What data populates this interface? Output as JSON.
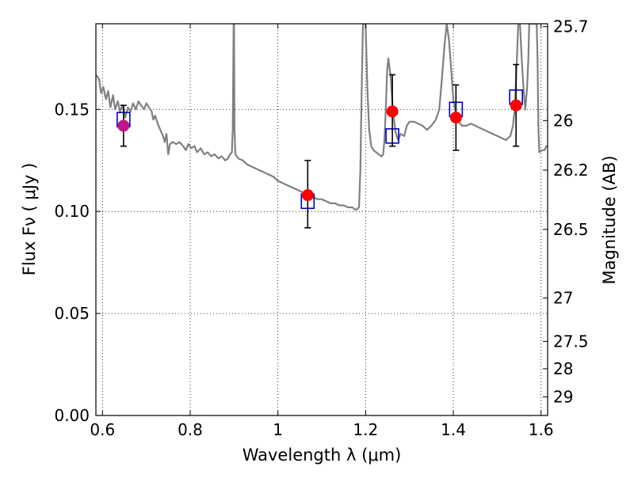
{
  "chart_data": {
    "type": "scatter",
    "title": "",
    "xlabel": "Wavelength  λ (μm)",
    "ylabel": "Flux  Fν  ( μJy )",
    "y2label": "Magnitude (AB)",
    "xlim": [
      0.585,
      1.615
    ],
    "ylim": [
      0.0,
      0.192
    ],
    "grid": true,
    "x_ticks": [
      {
        "value": 0.6,
        "label": "0.6"
      },
      {
        "value": 0.8,
        "label": "0.8"
      },
      {
        "value": 1.0,
        "label": "1"
      },
      {
        "value": 1.2,
        "label": "1.2"
      },
      {
        "value": 1.4,
        "label": "1.4"
      },
      {
        "value": 1.6,
        "label": "1.6"
      }
    ],
    "y_ticks": [
      {
        "value": 0.0,
        "label": "0.00"
      },
      {
        "value": 0.05,
        "label": "0.05"
      },
      {
        "value": 0.1,
        "label": "0.10"
      },
      {
        "value": 0.15,
        "label": "0.15"
      }
    ],
    "y2_ticks": [
      {
        "value": 25.7,
        "label": "25.7"
      },
      {
        "value": 26.0,
        "label": "26"
      },
      {
        "value": 26.2,
        "label": "26.2"
      },
      {
        "value": 26.5,
        "label": "26.5"
      },
      {
        "value": 27.0,
        "label": "27"
      },
      {
        "value": 27.5,
        "label": "27.5"
      },
      {
        "value": 28.0,
        "label": "28"
      },
      {
        "value": 29.0,
        "label": "29"
      }
    ],
    "series": [
      {
        "kind": "model_spectrum",
        "color": "#808080",
        "points": [
          [
            0.585,
            0.167
          ],
          [
            0.592,
            0.165
          ],
          [
            0.597,
            0.158
          ],
          [
            0.602,
            0.161
          ],
          [
            0.608,
            0.155
          ],
          [
            0.613,
            0.159
          ],
          [
            0.618,
            0.151
          ],
          [
            0.624,
            0.157
          ],
          [
            0.629,
            0.15
          ],
          [
            0.635,
            0.154
          ],
          [
            0.64,
            0.149
          ],
          [
            0.646,
            0.152
          ],
          [
            0.652,
            0.146
          ],
          [
            0.658,
            0.151
          ],
          [
            0.664,
            0.149
          ],
          [
            0.67,
            0.153
          ],
          [
            0.676,
            0.15
          ],
          [
            0.682,
            0.154
          ],
          [
            0.688,
            0.152
          ],
          [
            0.695,
            0.15
          ],
          [
            0.7,
            0.153
          ],
          [
            0.706,
            0.151
          ],
          [
            0.712,
            0.149
          ],
          [
            0.716,
            0.145
          ],
          [
            0.72,
            0.147
          ],
          [
            0.726,
            0.143
          ],
          [
            0.732,
            0.14
          ],
          [
            0.738,
            0.137
          ],
          [
            0.742,
            0.134
          ],
          [
            0.746,
            0.138
          ],
          [
            0.75,
            0.128
          ],
          [
            0.754,
            0.133
          ],
          [
            0.76,
            0.134
          ],
          [
            0.768,
            0.133
          ],
          [
            0.776,
            0.134
          ],
          [
            0.784,
            0.132
          ],
          [
            0.79,
            0.13
          ],
          [
            0.796,
            0.133
          ],
          [
            0.802,
            0.131
          ],
          [
            0.81,
            0.132
          ],
          [
            0.816,
            0.129
          ],
          [
            0.824,
            0.131
          ],
          [
            0.832,
            0.128
          ],
          [
            0.84,
            0.129
          ],
          [
            0.848,
            0.127
          ],
          [
            0.856,
            0.128
          ],
          [
            0.864,
            0.126
          ],
          [
            0.872,
            0.127
          ],
          [
            0.88,
            0.125
          ],
          [
            0.886,
            0.126
          ],
          [
            0.891,
            0.128
          ],
          [
            0.895,
            0.129
          ],
          [
            0.897,
            0.14
          ],
          [
            0.899,
            0.192
          ],
          [
            0.9,
            0.192
          ],
          [
            0.901,
            0.14
          ],
          [
            0.903,
            0.128
          ],
          [
            0.91,
            0.126
          ],
          [
            0.92,
            0.125
          ],
          [
            0.93,
            0.123
          ],
          [
            0.94,
            0.122
          ],
          [
            0.95,
            0.121
          ],
          [
            0.96,
            0.12
          ],
          [
            0.97,
            0.119
          ],
          [
            0.98,
            0.118
          ],
          [
            0.99,
            0.117
          ],
          [
            1.0,
            0.115
          ],
          [
            1.01,
            0.114
          ],
          [
            1.02,
            0.113
          ],
          [
            1.03,
            0.112
          ],
          [
            1.04,
            0.111
          ],
          [
            1.05,
            0.11
          ],
          [
            1.06,
            0.109
          ],
          [
            1.07,
            0.108
          ],
          [
            1.08,
            0.107
          ],
          [
            1.09,
            0.106
          ],
          [
            1.1,
            0.106
          ],
          [
            1.11,
            0.105
          ],
          [
            1.12,
            0.104
          ],
          [
            1.13,
            0.104
          ],
          [
            1.14,
            0.103
          ],
          [
            1.15,
            0.103
          ],
          [
            1.16,
            0.102
          ],
          [
            1.17,
            0.102
          ],
          [
            1.175,
            0.101
          ],
          [
            1.18,
            0.101
          ],
          [
            1.185,
            0.102
          ],
          [
            1.188,
            0.12
          ],
          [
            1.191,
            0.16
          ],
          [
            1.194,
            0.192
          ],
          [
            1.2,
            0.192
          ],
          [
            1.204,
            0.16
          ],
          [
            1.208,
            0.14
          ],
          [
            1.213,
            0.132
          ],
          [
            1.218,
            0.13
          ],
          [
            1.224,
            0.129
          ],
          [
            1.23,
            0.128
          ],
          [
            1.236,
            0.127
          ],
          [
            1.24,
            0.128
          ],
          [
            1.243,
            0.135
          ],
          [
            1.246,
            0.15
          ],
          [
            1.249,
            0.169
          ],
          [
            1.252,
            0.175
          ],
          [
            1.257,
            0.166
          ],
          [
            1.262,
            0.15
          ],
          [
            1.268,
            0.139
          ],
          [
            1.274,
            0.135
          ],
          [
            1.28,
            0.138
          ],
          [
            1.288,
            0.137
          ],
          [
            1.294,
            0.142
          ],
          [
            1.3,
            0.144
          ],
          [
            1.31,
            0.144
          ],
          [
            1.32,
            0.143
          ],
          [
            1.33,
            0.142
          ],
          [
            1.34,
            0.14
          ],
          [
            1.35,
            0.142
          ],
          [
            1.36,
            0.145
          ],
          [
            1.368,
            0.15
          ],
          [
            1.374,
            0.165
          ],
          [
            1.38,
            0.182
          ],
          [
            1.385,
            0.192
          ],
          [
            1.39,
            0.184
          ],
          [
            1.395,
            0.17
          ],
          [
            1.4,
            0.155
          ],
          [
            1.406,
            0.148
          ],
          [
            1.412,
            0.144
          ],
          [
            1.42,
            0.142
          ],
          [
            1.43,
            0.142
          ],
          [
            1.44,
            0.143
          ],
          [
            1.45,
            0.142
          ],
          [
            1.46,
            0.141
          ],
          [
            1.47,
            0.14
          ],
          [
            1.48,
            0.139
          ],
          [
            1.49,
            0.138
          ],
          [
            1.5,
            0.137
          ],
          [
            1.51,
            0.136
          ],
          [
            1.52,
            0.135
          ],
          [
            1.53,
            0.137
          ],
          [
            1.536,
            0.142
          ],
          [
            1.54,
            0.15
          ],
          [
            1.543,
            0.165
          ],
          [
            1.546,
            0.18
          ],
          [
            1.548,
            0.192
          ],
          [
            1.552,
            0.192
          ],
          [
            1.556,
            0.175
          ],
          [
            1.56,
            0.16
          ],
          [
            1.564,
            0.15
          ],
          [
            1.568,
            0.16
          ],
          [
            1.571,
            0.175
          ],
          [
            1.573,
            0.192
          ],
          [
            1.578,
            0.192
          ],
          [
            1.582,
            0.192
          ],
          [
            1.59,
            0.192
          ],
          [
            1.592,
            0.175
          ],
          [
            1.594,
            0.14
          ],
          [
            1.596,
            0.129
          ],
          [
            1.602,
            0.13
          ],
          [
            1.608,
            0.13
          ],
          [
            1.612,
            0.132
          ],
          [
            1.615,
            0.132
          ]
        ]
      },
      {
        "kind": "observed_flux",
        "color": "#ff0000",
        "points": [
          {
            "x": 0.648,
            "y": 0.142,
            "yerr_low": 0.01,
            "yerr_high": 0.01
          },
          {
            "x": 1.068,
            "y": 0.108,
            "yerr_low": 0.016,
            "yerr_high": 0.017
          },
          {
            "x": 1.261,
            "y": 0.149,
            "yerr_low": 0.017,
            "yerr_high": 0.018
          },
          {
            "x": 1.406,
            "y": 0.146,
            "yerr_low": 0.016,
            "yerr_high": 0.016
          },
          {
            "x": 1.543,
            "y": 0.152,
            "yerr_low": 0.02,
            "yerr_high": 0.02
          }
        ]
      },
      {
        "kind": "model_bandpass_flux",
        "color": "#0000cc",
        "points": [
          {
            "x": 0.648,
            "y": 0.145
          },
          {
            "x": 1.068,
            "y": 0.105
          },
          {
            "x": 1.261,
            "y": 0.137
          },
          {
            "x": 1.406,
            "y": 0.15
          },
          {
            "x": 1.543,
            "y": 0.156
          }
        ]
      }
    ]
  }
}
